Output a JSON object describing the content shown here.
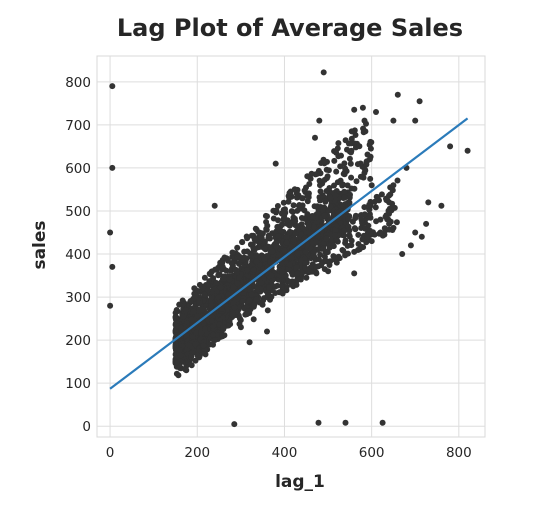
{
  "chart_data": {
    "type": "scatter",
    "title": "Lag Plot of Average Sales",
    "xlabel": "lag_1",
    "ylabel": "sales",
    "xlim": [
      -30,
      860
    ],
    "ylim": [
      -25,
      860
    ],
    "xticks": [
      0,
      200,
      400,
      600,
      800
    ],
    "yticks": [
      0,
      100,
      200,
      300,
      400,
      500,
      600,
      700,
      800
    ],
    "grid": true,
    "point_color": "#333333",
    "line_color": "#2b7bba",
    "regression_line": {
      "x": [
        0,
        820
      ],
      "y": [
        87,
        715
      ]
    },
    "outliers": [
      [
        0,
        280
      ],
      [
        0,
        450
      ],
      [
        5,
        790
      ],
      [
        5,
        600
      ],
      [
        5,
        370
      ],
      [
        240,
        512
      ],
      [
        285,
        5
      ],
      [
        490,
        822
      ],
      [
        478,
        8
      ],
      [
        540,
        8
      ],
      [
        625,
        8
      ],
      [
        820,
        640
      ],
      [
        780,
        650
      ],
      [
        760,
        512
      ],
      [
        730,
        520
      ],
      [
        710,
        755
      ],
      [
        700,
        710
      ],
      [
        680,
        600
      ],
      [
        660,
        770
      ],
      [
        650,
        710
      ],
      [
        640,
        470
      ],
      [
        620,
        450
      ],
      [
        600,
        430
      ],
      [
        580,
        740
      ],
      [
        560,
        735
      ],
      [
        610,
        730
      ],
      [
        440,
        530
      ],
      [
        460,
        575
      ],
      [
        480,
        710
      ],
      [
        470,
        670
      ],
      [
        380,
        610
      ],
      [
        360,
        220
      ],
      [
        320,
        195
      ],
      [
        300,
        230
      ],
      [
        280,
        260
      ],
      [
        260,
        230
      ],
      [
        240,
        200
      ],
      [
        500,
        360
      ],
      [
        520,
        380
      ],
      [
        560,
        355
      ],
      [
        590,
        440
      ],
      [
        620,
        480
      ],
      [
        640,
        520
      ],
      [
        670,
        400
      ],
      [
        690,
        420
      ],
      [
        700,
        450
      ],
      [
        715,
        440
      ],
      [
        725,
        470
      ],
      [
        650,
        560
      ],
      [
        600,
        560
      ]
    ],
    "upper_band": {
      "x_range": [
        150,
        600
      ],
      "offset_range": [
        30,
        190
      ]
    },
    "lower_band": {
      "x_range": [
        150,
        660
      ],
      "offset_range": [
        -130,
        -20
      ]
    }
  }
}
